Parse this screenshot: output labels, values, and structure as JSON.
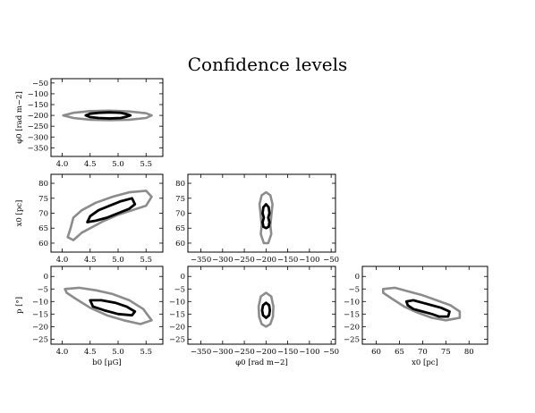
{
  "figure": {
    "title": "Confidence levels"
  },
  "colors": {
    "outer_contour": "#8c8c8c",
    "inner_contour": "#000000",
    "axes": "#000000"
  },
  "chart_data": [
    {
      "type": "contour",
      "panel": "b0-phi0",
      "xlabel": "",
      "ylabel": "φ0 [rad m−2]",
      "xlim": [
        3.8,
        5.8
      ],
      "ylim": [
        -390,
        -30
      ],
      "xticks": [
        4.0,
        4.5,
        5.0,
        5.5
      ],
      "xticklabels": [
        "4.0",
        "4.5",
        "5.0",
        "5.5"
      ],
      "yticks": [
        -50,
        -100,
        -150,
        -200,
        -250,
        -300,
        -350
      ],
      "yticklabels": [
        "−50",
        "−100",
        "−150",
        "−200",
        "−250",
        "−300",
        "−350"
      ],
      "contours": [
        {
          "level": "outer",
          "points": [
            [
              4.02,
              -200
            ],
            [
              4.2,
              -188
            ],
            [
              4.5,
              -180
            ],
            [
              4.85,
              -178
            ],
            [
              5.2,
              -182
            ],
            [
              5.5,
              -190
            ],
            [
              5.6,
              -200
            ],
            [
              5.5,
              -212
            ],
            [
              5.2,
              -220
            ],
            [
              4.85,
              -222
            ],
            [
              4.5,
              -220
            ],
            [
              4.2,
              -212
            ]
          ]
        },
        {
          "level": "inner",
          "points": [
            [
              4.42,
              -200
            ],
            [
              4.5,
              -192
            ],
            [
              4.65,
              -188
            ],
            [
              4.85,
              -186
            ],
            [
              5.05,
              -188
            ],
            [
              5.15,
              -194
            ],
            [
              5.22,
              -200
            ],
            [
              5.15,
              -206
            ],
            [
              5.05,
              -212
            ],
            [
              4.85,
              -214
            ],
            [
              4.65,
              -212
            ],
            [
              4.5,
              -208
            ]
          ]
        }
      ]
    },
    {
      "type": "contour",
      "panel": "b0-x0",
      "xlabel": "",
      "ylabel": "x0 [pc]",
      "xlim": [
        3.8,
        5.8
      ],
      "ylim": [
        57,
        83
      ],
      "xticks": [
        4.0,
        4.5,
        5.0,
        5.5
      ],
      "xticklabels": [
        "4.0",
        "4.5",
        "5.0",
        "5.5"
      ],
      "yticks": [
        60,
        65,
        70,
        75,
        80
      ],
      "yticklabels": [
        "60",
        "65",
        "70",
        "75",
        "80"
      ],
      "contours": [
        {
          "level": "outer",
          "points": [
            [
              4.1,
              62
            ],
            [
              4.15,
              65
            ],
            [
              4.2,
              68.5
            ],
            [
              4.35,
              71
            ],
            [
              4.6,
              73.5
            ],
            [
              4.9,
              75.5
            ],
            [
              5.2,
              77
            ],
            [
              5.5,
              77.5
            ],
            [
              5.6,
              75.5
            ],
            [
              5.5,
              72.5
            ],
            [
              5.25,
              71
            ],
            [
              5.0,
              69.5
            ],
            [
              4.75,
              67.5
            ],
            [
              4.55,
              65.5
            ],
            [
              4.35,
              63.5
            ],
            [
              4.2,
              61
            ]
          ]
        },
        {
          "level": "inner",
          "points": [
            [
              4.45,
              67
            ],
            [
              4.5,
              69
            ],
            [
              4.65,
              71
            ],
            [
              4.85,
              72.5
            ],
            [
              5.05,
              74
            ],
            [
              5.25,
              75
            ],
            [
              5.3,
              73
            ],
            [
              5.2,
              71.5
            ],
            [
              5.0,
              70
            ],
            [
              4.8,
              68.5
            ],
            [
              4.6,
              67.5
            ]
          ]
        }
      ]
    },
    {
      "type": "contour",
      "panel": "b0-p",
      "xlabel": "b0 [μG]",
      "ylabel": "p [°]",
      "xlim": [
        3.8,
        5.8
      ],
      "ylim": [
        -27,
        4
      ],
      "xticks": [
        4.0,
        4.5,
        5.0,
        5.5
      ],
      "xticklabels": [
        "4.0",
        "4.5",
        "5.0",
        "5.5"
      ],
      "yticks": [
        0,
        -5,
        -10,
        -15,
        -20,
        -25
      ],
      "yticklabels": [
        "0",
        "−5",
        "−10",
        "−15",
        "−20",
        "−25"
      ],
      "contours": [
        {
          "level": "outer",
          "points": [
            [
              4.05,
              -5
            ],
            [
              4.3,
              -4.5
            ],
            [
              4.6,
              -5.5
            ],
            [
              4.9,
              -7
            ],
            [
              5.2,
              -9.5
            ],
            [
              5.45,
              -13
            ],
            [
              5.6,
              -17.5
            ],
            [
              5.4,
              -19
            ],
            [
              5.1,
              -17.5
            ],
            [
              4.8,
              -15.5
            ],
            [
              4.5,
              -12.5
            ],
            [
              4.25,
              -9
            ],
            [
              4.08,
              -6.5
            ]
          ]
        },
        {
          "level": "inner",
          "points": [
            [
              4.5,
              -9.5
            ],
            [
              4.7,
              -9.5
            ],
            [
              4.95,
              -10.5
            ],
            [
              5.15,
              -12
            ],
            [
              5.3,
              -14
            ],
            [
              5.25,
              -15.5
            ],
            [
              5.0,
              -15
            ],
            [
              4.75,
              -13.5
            ],
            [
              4.55,
              -12
            ]
          ]
        }
      ]
    },
    {
      "type": "contour",
      "panel": "phi0-x0",
      "xlabel": "",
      "ylabel": "",
      "xlim": [
        -380,
        -40
      ],
      "ylim": [
        57,
        83
      ],
      "xticks": [
        -350,
        -300,
        -250,
        -200,
        -150,
        -100,
        -50
      ],
      "xticklabels": [
        "−350",
        "−300",
        "−250",
        "−200",
        "−150",
        "−100",
        "−50"
      ],
      "yticks": [
        60,
        65,
        70,
        75,
        80
      ],
      "yticklabels": [
        "60",
        "65",
        "70",
        "75",
        "80"
      ],
      "contours": [
        {
          "level": "outer",
          "points": [
            [
              -200,
              77
            ],
            [
              -190,
              76
            ],
            [
              -185,
              73
            ],
            [
              -188,
              69
            ],
            [
              -190,
              66
            ],
            [
              -188,
              63
            ],
            [
              -195,
              60
            ],
            [
              -205,
              60
            ],
            [
              -212,
              63
            ],
            [
              -210,
              66
            ],
            [
              -212,
              69
            ],
            [
              -215,
              73
            ],
            [
              -210,
              76
            ]
          ]
        },
        {
          "level": "inner",
          "points": [
            [
              -200,
              73
            ],
            [
              -194,
              72
            ],
            [
              -192,
              70
            ],
            [
              -195,
              68.5
            ],
            [
              -192,
              67
            ],
            [
              -194,
              65.5
            ],
            [
              -200,
              65
            ],
            [
              -206,
              65.5
            ],
            [
              -208,
              67
            ],
            [
              -205,
              68.5
            ],
            [
              -208,
              70
            ],
            [
              -206,
              72
            ]
          ]
        }
      ]
    },
    {
      "type": "contour",
      "panel": "phi0-p",
      "xlabel": "φ0 [rad m−2]",
      "ylabel": "",
      "xlim": [
        -380,
        -40
      ],
      "ylim": [
        -27,
        4
      ],
      "xticks": [
        -350,
        -300,
        -250,
        -200,
        -150,
        -100,
        -50
      ],
      "xticklabels": [
        "−350",
        "−300",
        "−250",
        "−200",
        "−150",
        "−100",
        "−50"
      ],
      "yticks": [
        0,
        -5,
        -10,
        -15,
        -20,
        -25
      ],
      "yticklabels": [
        "0",
        "−5",
        "−10",
        "−15",
        "−20",
        "−25"
      ],
      "contours": [
        {
          "level": "outer",
          "points": [
            [
              -200,
              -6.5
            ],
            [
              -188,
              -8
            ],
            [
              -183,
              -12
            ],
            [
              -184,
              -16
            ],
            [
              -190,
              -19
            ],
            [
              -200,
              -20
            ],
            [
              -210,
              -19
            ],
            [
              -216,
              -16
            ],
            [
              -217,
              -12
            ],
            [
              -212,
              -8
            ]
          ]
        },
        {
          "level": "inner",
          "points": [
            [
              -200,
              -10.5
            ],
            [
              -193,
              -11.5
            ],
            [
              -191,
              -13.5
            ],
            [
              -193,
              -15.5
            ],
            [
              -200,
              -16.5
            ],
            [
              -207,
              -15.5
            ],
            [
              -209,
              -13.5
            ],
            [
              -207,
              -11.5
            ]
          ]
        }
      ]
    },
    {
      "type": "contour",
      "panel": "x0-p",
      "xlabel": "x0 [pc]",
      "ylabel": "",
      "xlim": [
        57,
        84
      ],
      "ylim": [
        -27,
        4
      ],
      "xticks": [
        60,
        65,
        70,
        75,
        80
      ],
      "xticklabels": [
        "60",
        "65",
        "70",
        "75",
        "80"
      ],
      "yticks": [
        0,
        -5,
        -10,
        -15,
        -20,
        -25
      ],
      "yticklabels": [
        "0",
        "−5",
        "−10",
        "−15",
        "−20",
        "−25"
      ],
      "contours": [
        {
          "level": "outer",
          "points": [
            [
              61.5,
              -5
            ],
            [
              64,
              -4.5
            ],
            [
              67,
              -6
            ],
            [
              70,
              -7.5
            ],
            [
              73,
              -9.5
            ],
            [
              76,
              -11.5
            ],
            [
              78,
              -14
            ],
            [
              78,
              -16.5
            ],
            [
              75,
              -17.5
            ],
            [
              72,
              -16.5
            ],
            [
              69,
              -14.5
            ],
            [
              66,
              -12
            ],
            [
              63.5,
              -9
            ],
            [
              61.5,
              -6.5
            ]
          ]
        },
        {
          "level": "inner",
          "points": [
            [
              66.5,
              -10
            ],
            [
              68,
              -9.5
            ],
            [
              70,
              -10.5
            ],
            [
              72,
              -11.5
            ],
            [
              74,
              -12.5
            ],
            [
              75.8,
              -14
            ],
            [
              75.5,
              -16
            ],
            [
              73.5,
              -16
            ],
            [
              72,
              -15
            ],
            [
              70,
              -14
            ],
            [
              68,
              -13
            ],
            [
              66.8,
              -11.5
            ]
          ]
        }
      ]
    }
  ]
}
